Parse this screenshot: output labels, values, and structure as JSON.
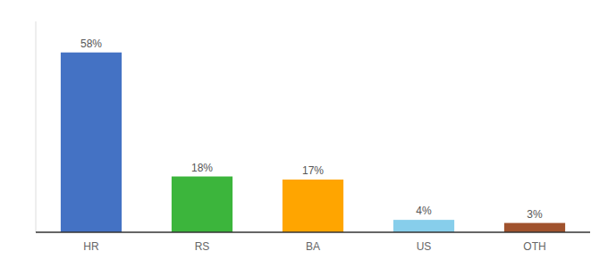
{
  "chart_data": {
    "type": "bar",
    "categories": [
      "HR",
      "RS",
      "BA",
      "US",
      "OTH"
    ],
    "values": [
      58,
      18,
      17,
      4,
      3
    ],
    "value_labels": [
      "58%",
      "18%",
      "17%",
      "4%",
      "3%"
    ],
    "colors": [
      "#4472C4",
      "#3CB53C",
      "#FFA500",
      "#87CEEB",
      "#A0522D"
    ],
    "ylim": [
      0,
      68
    ],
    "data_labels": true,
    "tick_labels": "x"
  }
}
